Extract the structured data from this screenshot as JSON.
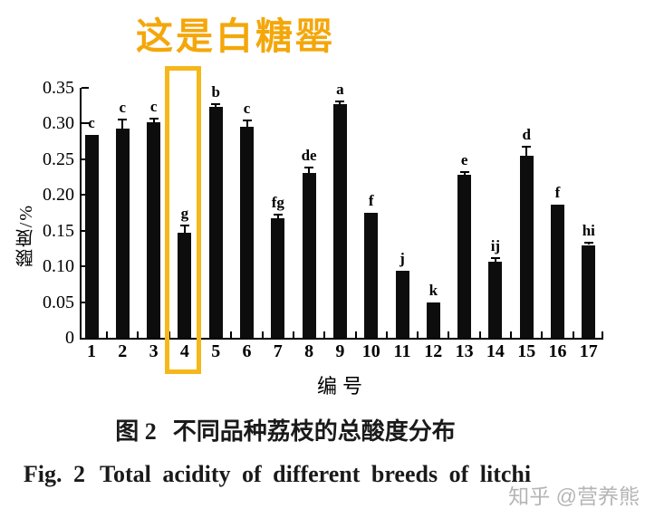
{
  "annotation": {
    "text": "这是白糖罂",
    "color": "#f4a70b"
  },
  "highlight": {
    "color": "#f6b71a",
    "target_category": "4"
  },
  "chart_data": {
    "type": "bar",
    "categories": [
      "1",
      "2",
      "3",
      "4",
      "5",
      "6",
      "7",
      "8",
      "9",
      "10",
      "11",
      "12",
      "13",
      "14",
      "15",
      "16",
      "17"
    ],
    "values": [
      0.284,
      0.293,
      0.302,
      0.147,
      0.323,
      0.295,
      0.167,
      0.231,
      0.327,
      0.175,
      0.094,
      0.05,
      0.228,
      0.107,
      0.255,
      0.187,
      0.13
    ],
    "errors": [
      0,
      0.012,
      0.005,
      0.01,
      0.004,
      0.009,
      0.006,
      0.007,
      0.004,
      0,
      0,
      0,
      0.004,
      0.005,
      0.013,
      0,
      0.003
    ],
    "letters": [
      "c",
      "c",
      "c",
      "g",
      "b",
      "c",
      "fg",
      "de",
      "a",
      "f",
      "j",
      "k",
      "e",
      "ij",
      "d",
      "f",
      "hi"
    ],
    "ylabel": "酸度/%",
    "xlabel": "编号",
    "ylim": [
      0,
      0.35
    ],
    "ytick_labels": [
      "0",
      "0.05",
      "0.10",
      "0.15",
      "0.20",
      "0.25",
      "0.30",
      "0.35"
    ],
    "bar_color": "#0d0d0d",
    "grid": false,
    "legend": "none"
  },
  "captions": {
    "cn_label": "图 2",
    "cn_text": "不同品种荔枝的总酸度分布",
    "en_label": "Fig. 2",
    "en_text": "Total acidity of different breeds of litchi"
  },
  "watermark": {
    "text": "知乎 @营养熊",
    "color": "#b5b5b5"
  }
}
